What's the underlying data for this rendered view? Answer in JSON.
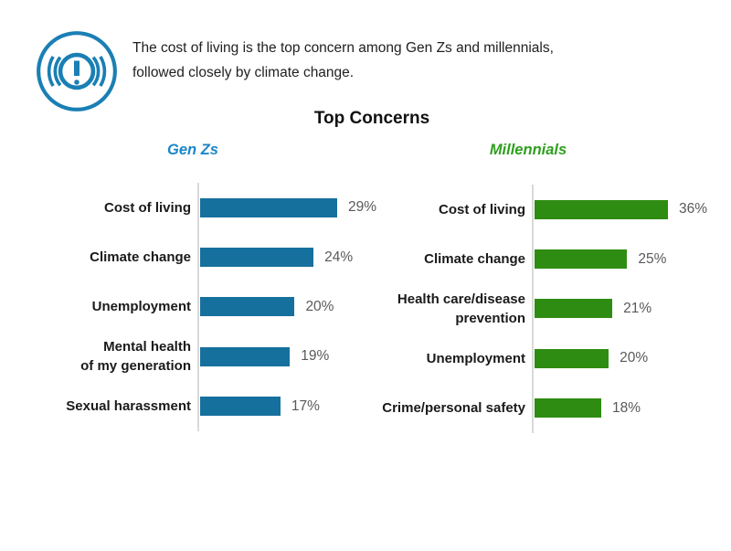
{
  "callout": {
    "icon": "alert-exclamation-icon",
    "icon_color": "#1a7fb4",
    "text": "The cost of living is the top concern among Gen Zs and millennials,\nfollowed closely by climate change."
  },
  "chart_data": {
    "type": "bar",
    "orientation": "horizontal",
    "title": "Top Concerns",
    "unit": "%",
    "grid": false,
    "legend": "none",
    "panels": [
      {
        "header": "Gen Zs",
        "header_color": "#1b86c8",
        "bar_color": "#16709d",
        "xlim": [
          0,
          32
        ],
        "rows": [
          {
            "label": "Cost of living",
            "value": 29,
            "value_label": "29%"
          },
          {
            "label": "Climate change",
            "value": 24,
            "value_label": "24%"
          },
          {
            "label": "Unemployment",
            "value": 20,
            "value_label": "20%"
          },
          {
            "label": "Mental health\nof my generation",
            "value": 19,
            "value_label": "19%"
          },
          {
            "label": "Sexual harassment",
            "value": 17,
            "value_label": "17%"
          }
        ]
      },
      {
        "header": "Millennials",
        "header_color": "#2f9e1f",
        "bar_color": "#2f8c12",
        "xlim": [
          0,
          40
        ],
        "rows": [
          {
            "label": "Cost of living",
            "value": 36,
            "value_label": "36%"
          },
          {
            "label": "Climate change",
            "value": 25,
            "value_label": "25%"
          },
          {
            "label": "Health care/disease\nprevention",
            "value": 21,
            "value_label": "21%"
          },
          {
            "label": "Unemployment",
            "value": 20,
            "value_label": "20%"
          },
          {
            "label": "Crime/personal safety",
            "value": 18,
            "value_label": "18%"
          }
        ]
      }
    ]
  }
}
